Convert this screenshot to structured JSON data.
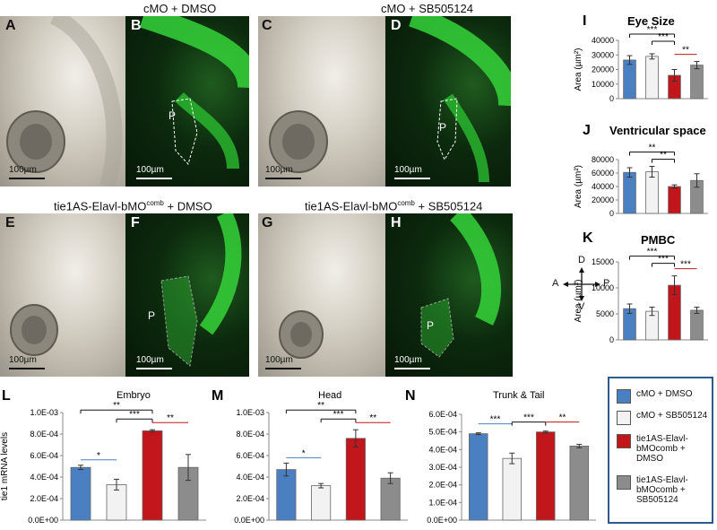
{
  "panels": {
    "top_left_title": "cMO + DMSO",
    "top_right_title": "cMO + SB505124",
    "bottom_left_title": "tie1AS-Elavl-bMO",
    "bottom_left_sup": "comb",
    "bottom_left_suffix": " + DMSO",
    "bottom_right_title": "tie1AS-Elavl-bMO",
    "bottom_right_sup": "comb",
    "bottom_right_suffix": " + SB505124",
    "letters": [
      "A",
      "B",
      "C",
      "D",
      "E",
      "F",
      "G",
      "H"
    ],
    "scale_label": "100µm",
    "p_label": "P"
  },
  "compass": {
    "up": "D",
    "down": "V",
    "left": "A",
    "right": "P"
  },
  "legend": {
    "items": [
      {
        "label": "cMO + DMSO",
        "color": "#4a7fc1"
      },
      {
        "label": "cMO + SB505124",
        "color": "#f2f2f2"
      },
      {
        "label": "tie1AS-Elavl-\nbMOcomb +\nDMSO",
        "color": "#c0161c"
      },
      {
        "label": "tie1AS-Elavl-\nbMOcomb +\nSB505124",
        "color": "#8c8c8c"
      }
    ]
  },
  "chart_data": [
    {
      "id": "I",
      "type": "bar",
      "title": "Eye Size",
      "ylabel": "Area (µm²)",
      "categories": [
        "cMO + DMSO",
        "cMO + SB505124",
        "tie1AS-Elavl-bMOcomb + DMSO",
        "tie1AS-Elavl-bMOcomb + SB505124"
      ],
      "values": [
        26500,
        29000,
        16000,
        23000
      ],
      "errors": [
        3000,
        1800,
        4000,
        2500
      ],
      "ylim": [
        0,
        40000
      ],
      "ticks": [
        "0",
        "10000",
        "20000",
        "30000",
        "40000"
      ],
      "annotations": [
        "***",
        "***",
        "**"
      ]
    },
    {
      "id": "J",
      "type": "bar",
      "title": "Ventricular space",
      "ylabel": "Area (µm²)",
      "categories": [
        "cMO + DMSO",
        "cMO + SB505124",
        "tie1AS-Elavl-bMOcomb + DMSO",
        "tie1AS-Elavl-bMOcomb + SB505124"
      ],
      "values": [
        61000,
        62000,
        40000,
        49000
      ],
      "errors": [
        7000,
        8000,
        2500,
        10000
      ],
      "ylim": [
        0,
        80000
      ],
      "ticks": [
        "0",
        "20000",
        "40000",
        "60000",
        "80000"
      ],
      "annotations": [
        "**",
        "**"
      ]
    },
    {
      "id": "K",
      "type": "bar",
      "title": "PMBC",
      "ylabel": "Area (µm²)",
      "categories": [
        "cMO + DMSO",
        "cMO + SB505124",
        "tie1AS-Elavl-bMOcomb + DMSO",
        "tie1AS-Elavl-bMOcomb + SB505124"
      ],
      "values": [
        6000,
        5500,
        10500,
        5700
      ],
      "errors": [
        900,
        800,
        1800,
        600
      ],
      "ylim": [
        0,
        15000
      ],
      "ticks": [
        "0",
        "5000",
        "10000",
        "15000"
      ],
      "annotations": [
        "***",
        "***",
        "***"
      ]
    },
    {
      "id": "L",
      "type": "bar",
      "title": "Embryo",
      "ylabel": "tie1 mRNA levels",
      "categories": [
        "cMO + DMSO",
        "cMO + SB505124",
        "tie1AS-Elavl-bMOcomb + DMSO",
        "tie1AS-Elavl-bMOcomb + SB505124"
      ],
      "values": [
        0.00049,
        0.00033,
        0.00083,
        0.00049
      ],
      "errors": [
        2e-05,
        5e-05,
        1e-05,
        0.00012
      ],
      "ylim": [
        0,
        0.001
      ],
      "ticks": [
        "0.0E+00",
        "2.0E-04",
        "4.0E-04",
        "6.0E-04",
        "8.0E-04",
        "1.0E-03"
      ],
      "annotations": [
        "**",
        "***",
        "**",
        "*"
      ]
    },
    {
      "id": "M",
      "type": "bar",
      "title": "Head",
      "ylabel": "",
      "categories": [
        "cMO + DMSO",
        "cMO + SB505124",
        "tie1AS-Elavl-bMOcomb + DMSO",
        "tie1AS-Elavl-bMOcomb + SB505124"
      ],
      "values": [
        0.00047,
        0.00032,
        0.00076,
        0.00039
      ],
      "errors": [
        6e-05,
        2e-05,
        8e-05,
        5e-05
      ],
      "ylim": [
        0,
        0.001
      ],
      "ticks": [
        "0.0E+00",
        "2.0E-04",
        "4.0E-04",
        "6.0E-04",
        "8.0E-04",
        "1.0E-03"
      ],
      "annotations": [
        "**",
        "***",
        "**",
        "*"
      ]
    },
    {
      "id": "N",
      "type": "bar",
      "title": "Trunk & Tail",
      "ylabel": "",
      "categories": [
        "cMO + DMSO",
        "cMO + SB505124",
        "tie1AS-Elavl-bMOcomb + DMSO",
        "tie1AS-Elavl-bMOcomb + SB505124"
      ],
      "values": [
        0.00049,
        0.00035,
        0.0005,
        0.00042
      ],
      "errors": [
        5e-06,
        3e-05,
        5e-06,
        1e-05
      ],
      "ylim": [
        0,
        0.0006
      ],
      "ticks": [
        "0.0E+00",
        "1.0E-04",
        "2.0E-04",
        "3.0E-04",
        "4.0E-04",
        "5.0E-04",
        "6.0E-04"
      ],
      "annotations": [
        "***",
        "***",
        "**"
      ]
    }
  ]
}
